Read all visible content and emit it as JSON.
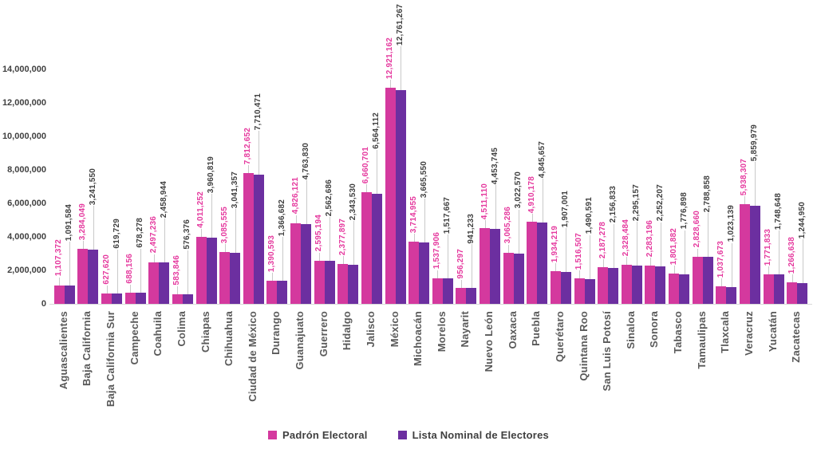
{
  "chart_data": {
    "type": "bar",
    "title": "",
    "xlabel": "",
    "ylabel": "",
    "ylim": [
      0,
      14000000
    ],
    "grid": "off",
    "legend_position": "bottom",
    "value_labels": "rotated vertical, above bars, with gray leader lines",
    "y_ticks": [
      "0",
      "2,000,000",
      "4,000,000",
      "6,000,000",
      "8,000,000",
      "10,000,000",
      "12,000,000",
      "14,000,000"
    ],
    "categories": [
      "Aguascalientes",
      "Baja California",
      "Baja California Sur",
      "Campeche",
      "Coahuila",
      "Colima",
      "Chiapas",
      "Chihuahua",
      "Ciudad de México",
      "Durango",
      "Guanajuato",
      "Guerrero",
      "Hidalgo",
      "Jalisco",
      "México",
      "Michoacán",
      "Morelos",
      "Nayarit",
      "Nuevo León",
      "Oaxaca",
      "Puebla",
      "Querétaro",
      "Quintana Roo",
      "San Luis Potosí",
      "Sinaloa",
      "Sonora",
      "Tabasco",
      "Tamaulipas",
      "Tlaxcala",
      "Veracruz",
      "Yucatán",
      "Zacatecas"
    ],
    "series": [
      {
        "name": "Padrón Electoral",
        "color": "#d4399e",
        "label_color": "#e5399e",
        "values": [
          1107372,
          3284049,
          627620,
          688156,
          2497236,
          583846,
          4011252,
          3085555,
          7812652,
          1390593,
          4826121,
          2595194,
          2377897,
          6660701,
          12921162,
          3714955,
          1537906,
          956297,
          4511110,
          3065286,
          4910178,
          1934219,
          1516507,
          2187278,
          2328484,
          2283196,
          1801882,
          2828660,
          1037673,
          5938307,
          1771833,
          1266638
        ]
      },
      {
        "name": "Lista Nominal de Electores",
        "color": "#6c2fa0",
        "label_color": "#404040",
        "values": [
          1091584,
          3241550,
          619729,
          678278,
          2458944,
          576376,
          3960819,
          3041357,
          7710471,
          1366682,
          4763830,
          2562686,
          2343530,
          6564112,
          12761267,
          3665550,
          1517667,
          941233,
          4453745,
          3022570,
          4845657,
          1907001,
          1490591,
          2156833,
          2295157,
          2252207,
          1776898,
          2788858,
          1023139,
          5859979,
          1748648,
          1244950
        ]
      }
    ]
  },
  "colors": {
    "axis_line": "#d9d9d9",
    "leader_line": "#c9c9c9",
    "tick_label": "#404040",
    "category_label": "#595959",
    "legend_text": "#3f3f3f"
  }
}
